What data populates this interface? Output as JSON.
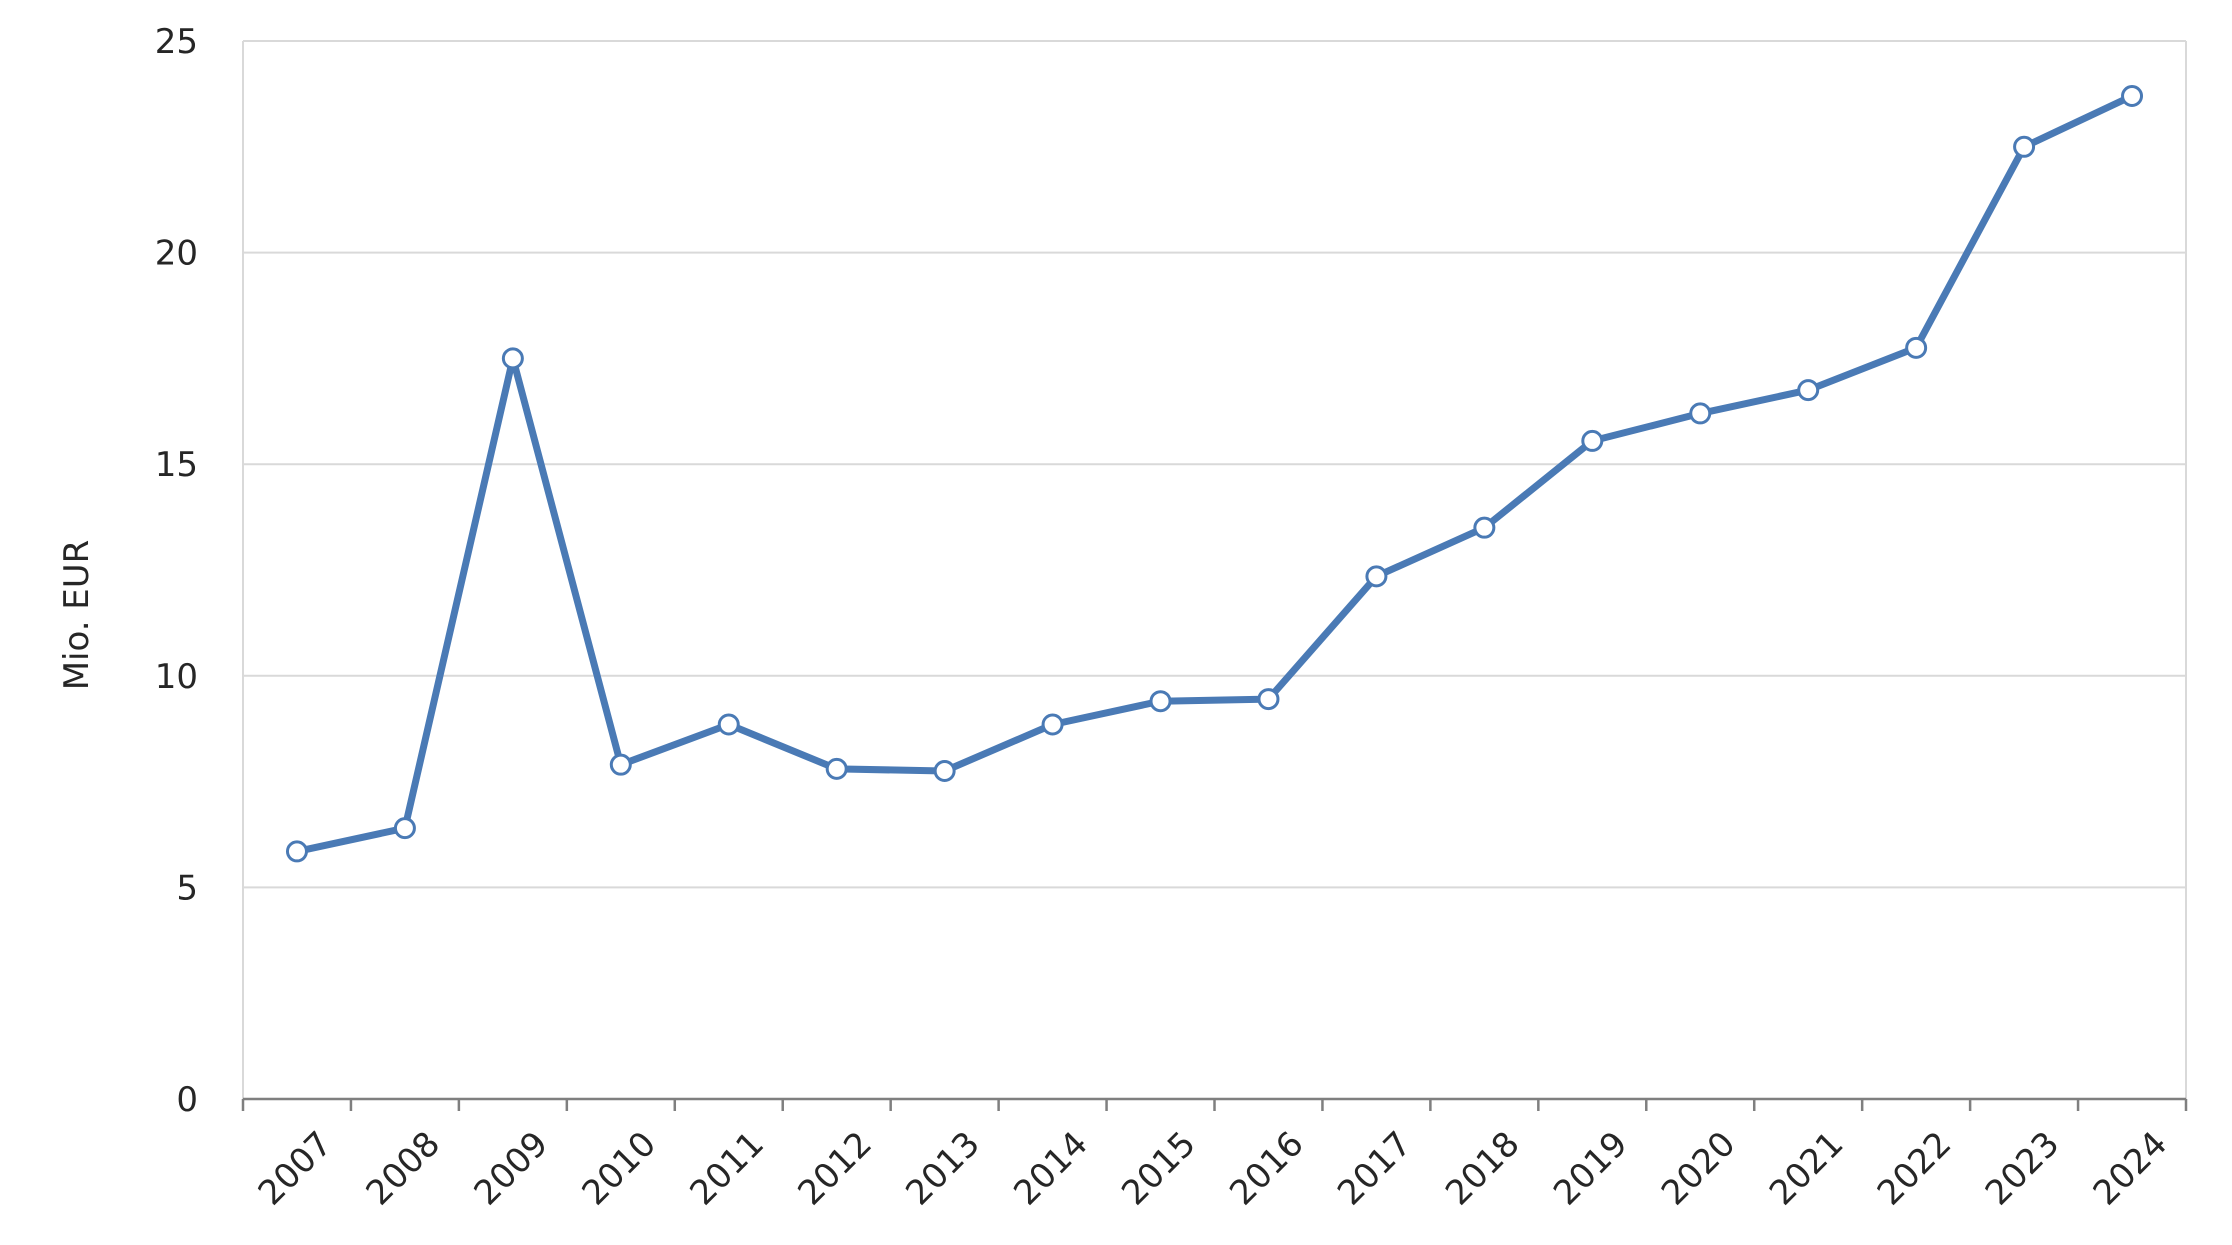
{
  "chart_data": {
    "type": "line",
    "title": "",
    "xlabel": "",
    "ylabel": "Mio. EUR",
    "categories": [
      "2007",
      "2008",
      "2009",
      "2010",
      "2011",
      "2012",
      "2013",
      "2014",
      "2015",
      "2016",
      "2017",
      "2018",
      "2019",
      "2020",
      "2021",
      "2022",
      "2023",
      "2024"
    ],
    "series": [
      {
        "values": [
          5.85,
          6.4,
          17.5,
          7.9,
          8.85,
          7.8,
          7.75,
          8.85,
          9.4,
          9.45,
          12.35,
          13.5,
          15.55,
          16.2,
          16.75,
          17.75,
          22.5,
          23.7
        ]
      }
    ],
    "ylim": [
      0,
      25
    ],
    "yticks": [
      0,
      5,
      10,
      15,
      20,
      25
    ],
    "grid": true,
    "legend": "none",
    "colors": {
      "line": "#4a7ab5",
      "marker_fill": "#ffffff",
      "grid": "#d9d9d9",
      "axis": "#7f7f7f"
    }
  }
}
